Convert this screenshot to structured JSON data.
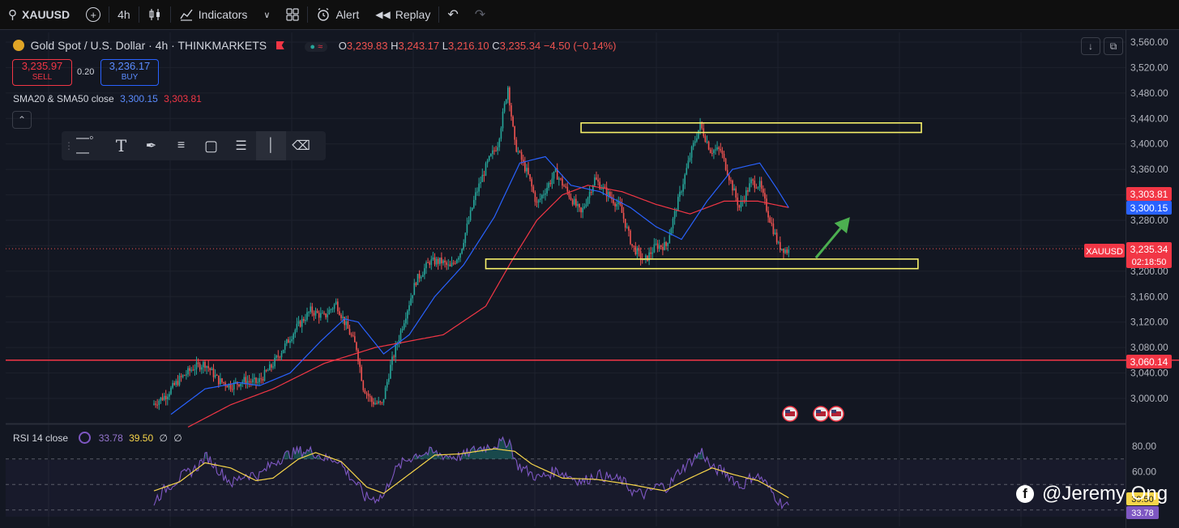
{
  "toolbar": {
    "symbol": "XAUUSD",
    "interval": "4h",
    "indicators": "Indicators",
    "alert": "Alert",
    "replay": "Replay"
  },
  "legend": {
    "title": "Gold Spot / U.S. Dollar · 4h · THINKMARKETS",
    "o_label": "O",
    "o": "3,239.83",
    "h_label": "H",
    "h": "3,243.17",
    "l_label": "L",
    "l": "3,216.10",
    "c_label": "C",
    "c": "3,235.34",
    "change": "−4.50 (−0.14%)",
    "sell_price": "3,235.97",
    "sell_label": "SELL",
    "spread": "0.20",
    "buy_price": "3,236.17",
    "buy_label": "BUY",
    "sma_label": "SMA20 & SMA50 close",
    "sma20_value": "3,300.15",
    "sma50_value": "3,303.81"
  },
  "rsi_legend": {
    "label": "RSI 14 close",
    "rsi_value": "33.78",
    "ma_value": "39.50",
    "extra1": "∅",
    "extra2": "∅"
  },
  "price_labels": {
    "sma50": "3,303.81",
    "sma20": "3,300.15",
    "symbol_tag": "XAUUSD",
    "last": "3,235.34",
    "countdown": "02:18:50",
    "hline": "3,060.14"
  },
  "rsi_labels": {
    "ma": "39.50",
    "rsi": "33.78"
  },
  "watermark": "@Jeremy Ong",
  "colors": {
    "up": "#26a69a",
    "down": "#ef5350",
    "sma20": "#2962ff",
    "sma50": "#f23645",
    "rsi": "#7e57c2",
    "rsi_ma": "#f7d54a",
    "zone": "#f7f16a",
    "arrow": "#4caf50",
    "hline": "#f23645"
  },
  "chart_data": [
    {
      "type": "candlestick",
      "title": "Gold Spot / U.S. Dollar · 4h · THINKMARKETS",
      "y_ticks": [
        3000,
        3040,
        3080,
        3120,
        3160,
        3200,
        3240,
        3280,
        3320,
        3360,
        3400,
        3440,
        3480,
        3520,
        3560
      ],
      "y_tick_labels": [
        "3,000.00",
        "3,040.00",
        "3,080.00",
        "3,120.00",
        "3,160.00",
        "3,200.00",
        "3,240.00",
        "3,280.00",
        "3,320.00",
        "3,360.00",
        "3,400.00",
        "3,440.00",
        "3,480.00",
        "3,520.00",
        "3,560.00"
      ],
      "ylim": [
        2965,
        3578
      ],
      "anchors": [
        [
          0,
          2990
        ],
        [
          8,
          3005
        ],
        [
          16,
          3030
        ],
        [
          24,
          3048
        ],
        [
          31,
          3055
        ],
        [
          39,
          3028
        ],
        [
          46,
          3020
        ],
        [
          54,
          3028
        ],
        [
          62,
          3025
        ],
        [
          70,
          3050
        ],
        [
          78,
          3083
        ],
        [
          85,
          3112
        ],
        [
          93,
          3138
        ],
        [
          101,
          3128
        ],
        [
          108,
          3150
        ],
        [
          113,
          3120
        ],
        [
          120,
          3080
        ],
        [
          124,
          3018
        ],
        [
          129,
          2995
        ],
        [
          135,
          2990
        ],
        [
          140,
          3050
        ],
        [
          147,
          3115
        ],
        [
          155,
          3185
        ],
        [
          163,
          3215
        ],
        [
          170,
          3215
        ],
        [
          175,
          3205
        ],
        [
          181,
          3230
        ],
        [
          190,
          3320
        ],
        [
          197,
          3370
        ],
        [
          203,
          3400
        ],
        [
          209,
          3490
        ],
        [
          213,
          3400
        ],
        [
          221,
          3350
        ],
        [
          226,
          3305
        ],
        [
          237,
          3355
        ],
        [
          245,
          3320
        ],
        [
          252,
          3290
        ],
        [
          260,
          3345
        ],
        [
          268,
          3320
        ],
        [
          275,
          3300
        ],
        [
          282,
          3240
        ],
        [
          289,
          3215
        ],
        [
          296,
          3240
        ],
        [
          302,
          3240
        ],
        [
          309,
          3310
        ],
        [
          317,
          3390
        ],
        [
          322,
          3430
        ],
        [
          328,
          3390
        ],
        [
          334,
          3390
        ],
        [
          340,
          3340
        ],
        [
          345,
          3300
        ],
        [
          352,
          3340
        ],
        [
          357,
          3335
        ],
        [
          362,
          3290
        ],
        [
          368,
          3240
        ],
        [
          373,
          3232
        ]
      ],
      "sma20_anchors": [
        [
          10,
          2975
        ],
        [
          30,
          3015
        ],
        [
          50,
          3025
        ],
        [
          62,
          3020
        ],
        [
          80,
          3040
        ],
        [
          98,
          3090
        ],
        [
          112,
          3125
        ],
        [
          120,
          3120
        ],
        [
          135,
          3070
        ],
        [
          150,
          3100
        ],
        [
          165,
          3160
        ],
        [
          182,
          3210
        ],
        [
          200,
          3285
        ],
        [
          215,
          3370
        ],
        [
          230,
          3380
        ],
        [
          245,
          3335
        ],
        [
          262,
          3325
        ],
        [
          280,
          3300
        ],
        [
          295,
          3270
        ],
        [
          310,
          3250
        ],
        [
          325,
          3310
        ],
        [
          340,
          3360
        ],
        [
          356,
          3370
        ],
        [
          366,
          3330
        ],
        [
          373,
          3300
        ]
      ],
      "sma50_anchors": [
        [
          20,
          2955
        ],
        [
          45,
          2990
        ],
        [
          70,
          3015
        ],
        [
          100,
          3055
        ],
        [
          130,
          3080
        ],
        [
          150,
          3090
        ],
        [
          170,
          3100
        ],
        [
          195,
          3145
        ],
        [
          210,
          3215
        ],
        [
          225,
          3280
        ],
        [
          240,
          3320
        ],
        [
          255,
          3335
        ],
        [
          275,
          3325
        ],
        [
          295,
          3305
        ],
        [
          315,
          3290
        ],
        [
          335,
          3310
        ],
        [
          355,
          3310
        ],
        [
          373,
          3300
        ]
      ],
      "horizontal_line": 3060.14,
      "zones": [
        {
          "name": "resistance-zone",
          "x_start": 251,
          "x_end": 451,
          "y_low": 3418,
          "y_high": 3433
        },
        {
          "name": "support-zone",
          "x_start": 195,
          "x_end": 449,
          "y_low": 3204,
          "y_high": 3219
        }
      ],
      "arrow": {
        "from": [
          389,
          3221
        ],
        "to": [
          409,
          3285
        ]
      },
      "last_price": 3235.34
    },
    {
      "type": "line",
      "title": "RSI 14 close",
      "y_ticks": [
        40,
        60,
        80
      ],
      "y_tick_labels": [
        "40.00",
        "60.00",
        "80.00"
      ],
      "ylim": [
        33,
        86
      ],
      "bands": [
        30,
        50,
        70
      ],
      "rsi_anchors": [
        [
          0,
          37
        ],
        [
          8,
          48
        ],
        [
          16,
          56
        ],
        [
          24,
          62
        ],
        [
          31,
          72
        ],
        [
          39,
          60
        ],
        [
          46,
          51
        ],
        [
          54,
          58
        ],
        [
          62,
          57
        ],
        [
          70,
          67
        ],
        [
          78,
          73
        ],
        [
          85,
          76
        ],
        [
          93,
          76
        ],
        [
          101,
          70
        ],
        [
          108,
          70
        ],
        [
          113,
          60
        ],
        [
          120,
          49
        ],
        [
          124,
          40
        ],
        [
          129,
          39
        ],
        [
          135,
          41
        ],
        [
          140,
          58
        ],
        [
          147,
          68
        ],
        [
          155,
          74
        ],
        [
          163,
          75
        ],
        [
          170,
          73
        ],
        [
          175,
          72
        ],
        [
          181,
          72
        ],
        [
          190,
          78
        ],
        [
          197,
          80
        ],
        [
          203,
          82
        ],
        [
          209,
          84
        ],
        [
          213,
          66
        ],
        [
          221,
          59
        ],
        [
          226,
          55
        ],
        [
          237,
          61
        ],
        [
          245,
          56
        ],
        [
          252,
          52
        ],
        [
          260,
          58
        ],
        [
          268,
          55
        ],
        [
          275,
          53
        ],
        [
          282,
          44
        ],
        [
          289,
          42
        ],
        [
          296,
          49
        ],
        [
          302,
          48
        ],
        [
          309,
          61
        ],
        [
          317,
          70
        ],
        [
          322,
          76
        ],
        [
          328,
          62
        ],
        [
          334,
          61
        ],
        [
          340,
          55
        ],
        [
          345,
          48
        ],
        [
          352,
          57
        ],
        [
          357,
          55
        ],
        [
          362,
          46
        ],
        [
          368,
          36
        ],
        [
          373,
          33.78
        ]
      ],
      "ma_anchors": [
        [
          0,
          45
        ],
        [
          15,
          52
        ],
        [
          30,
          67
        ],
        [
          45,
          63
        ],
        [
          60,
          53
        ],
        [
          70,
          55
        ],
        [
          85,
          70
        ],
        [
          95,
          75
        ],
        [
          110,
          68
        ],
        [
          125,
          48
        ],
        [
          135,
          43
        ],
        [
          150,
          58
        ],
        [
          165,
          73
        ],
        [
          180,
          74
        ],
        [
          200,
          78
        ],
        [
          212,
          76
        ],
        [
          222,
          66
        ],
        [
          240,
          55
        ],
        [
          260,
          54
        ],
        [
          280,
          50
        ],
        [
          300,
          45
        ],
        [
          315,
          55
        ],
        [
          328,
          63
        ],
        [
          340,
          58
        ],
        [
          355,
          53
        ],
        [
          366,
          45
        ],
        [
          373,
          39.5
        ]
      ],
      "last_rsi": 33.78,
      "last_ma": 39.5
    }
  ]
}
